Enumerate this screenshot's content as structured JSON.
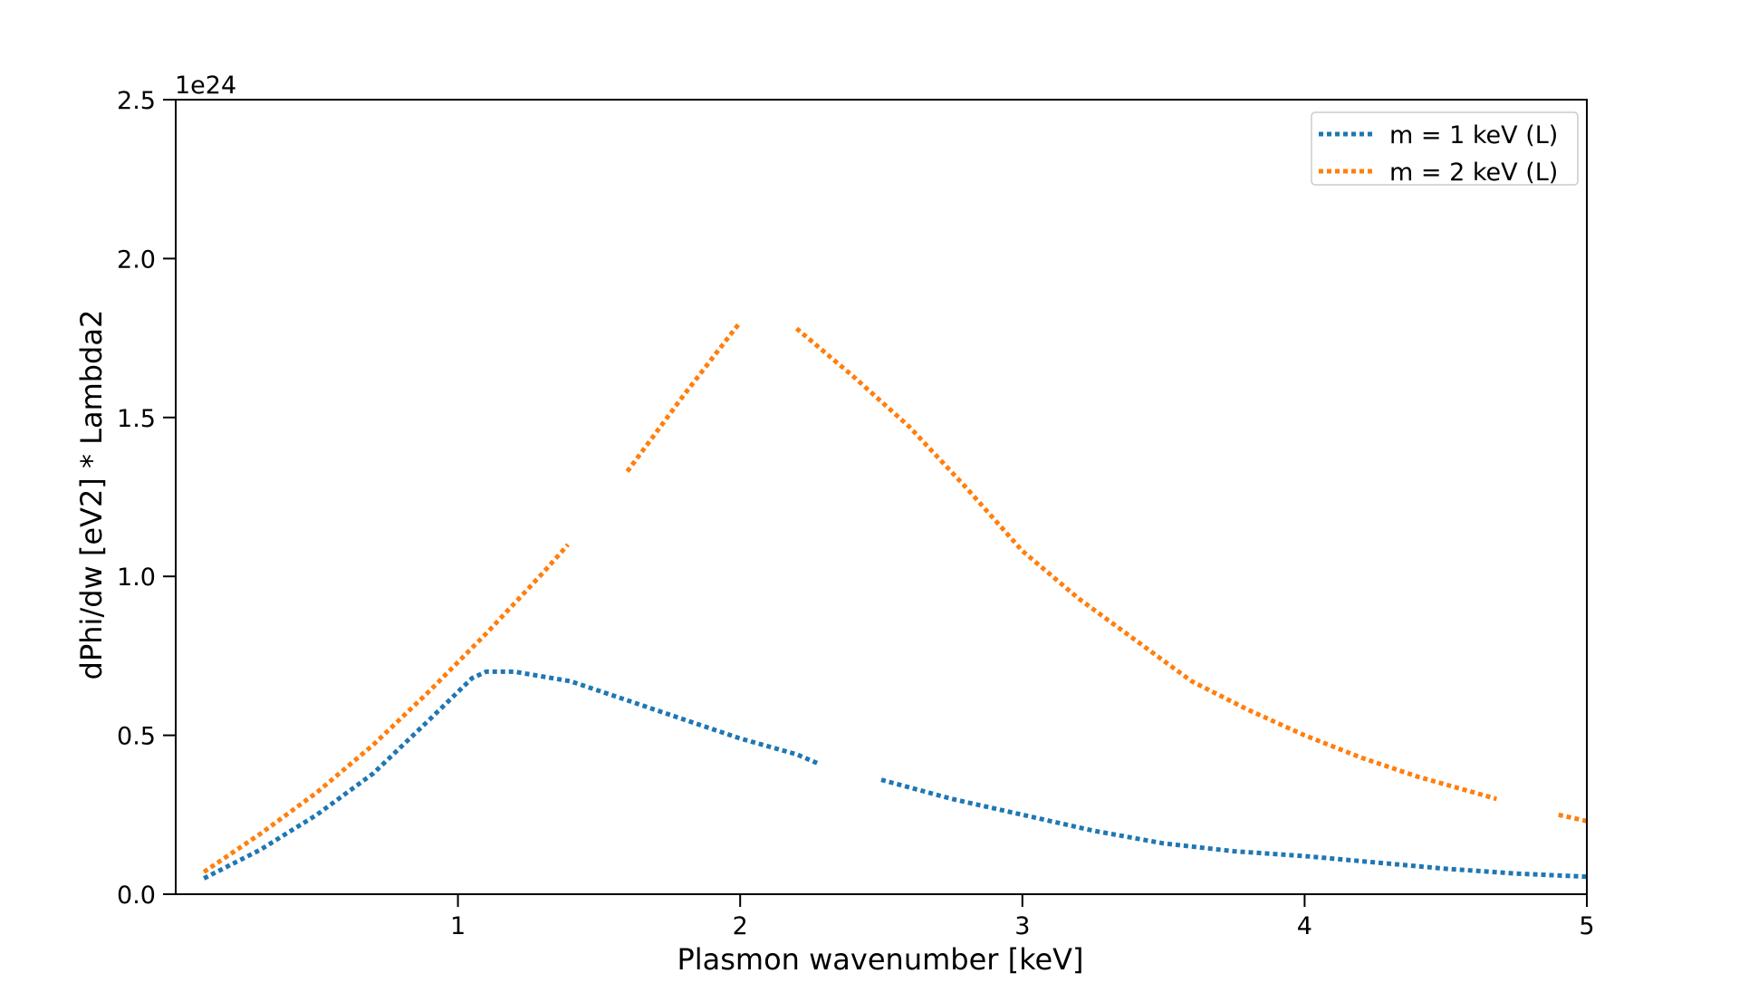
{
  "chart_data": {
    "type": "line",
    "title": "",
    "xlabel": "Plasmon wavenumber [keV]",
    "ylabel": "dPhi/dw [eV2] * Lambda2",
    "y_offset_text": "1e24",
    "xlim": [
      0.0,
      5.0
    ],
    "ylim": [
      0.0,
      2.5
    ],
    "x_ticks": [
      "1",
      "2",
      "3",
      "4",
      "5"
    ],
    "x_tick_values": [
      1,
      2,
      3,
      4,
      5
    ],
    "y_ticks": [
      "0.0",
      "0.5",
      "1.0",
      "1.5",
      "2.0",
      "2.5"
    ],
    "y_tick_values": [
      0.0,
      0.5,
      1.0,
      1.5,
      2.0,
      2.5
    ],
    "legend_position": "top-right",
    "series": [
      {
        "name": "m = 1 keV (L)",
        "color": "#1f77b4",
        "linestyle": "dotted",
        "segments": [
          [
            [
              0.1,
              0.05
            ],
            [
              0.3,
              0.14
            ],
            [
              0.5,
              0.25
            ],
            [
              0.7,
              0.38
            ],
            [
              0.9,
              0.55
            ],
            [
              1.05,
              0.68
            ],
            [
              1.1,
              0.7
            ],
            [
              1.2,
              0.7
            ],
            [
              1.4,
              0.67
            ],
            [
              1.6,
              0.61
            ],
            [
              1.8,
              0.55
            ],
            [
              2.0,
              0.49
            ],
            [
              2.2,
              0.44
            ],
            [
              2.28,
              0.41
            ]
          ],
          [
            [
              2.5,
              0.36
            ],
            [
              2.75,
              0.3
            ],
            [
              3.0,
              0.25
            ],
            [
              3.25,
              0.2
            ],
            [
              3.5,
              0.16
            ],
            [
              3.75,
              0.135
            ],
            [
              4.0,
              0.12
            ],
            [
              4.25,
              0.1
            ],
            [
              4.5,
              0.08
            ],
            [
              4.75,
              0.065
            ],
            [
              5.0,
              0.055
            ]
          ]
        ]
      },
      {
        "name": "m = 2 keV (L)",
        "color": "#ff7f0e",
        "linestyle": "dotted",
        "segments": [
          [
            [
              0.1,
              0.07
            ],
            [
              0.3,
              0.19
            ],
            [
              0.5,
              0.32
            ],
            [
              0.7,
              0.47
            ],
            [
              0.9,
              0.64
            ],
            [
              1.1,
              0.82
            ],
            [
              1.3,
              1.01
            ],
            [
              1.39,
              1.1
            ]
          ],
          [
            [
              1.6,
              1.33
            ],
            [
              1.8,
              1.57
            ],
            [
              2.0,
              1.8
            ]
          ],
          [
            [
              2.2,
              1.78
            ],
            [
              2.4,
              1.63
            ],
            [
              2.6,
              1.47
            ],
            [
              2.8,
              1.28
            ],
            [
              3.0,
              1.08
            ],
            [
              3.2,
              0.93
            ],
            [
              3.4,
              0.8
            ],
            [
              3.6,
              0.67
            ],
            [
              3.8,
              0.58
            ],
            [
              4.0,
              0.5
            ],
            [
              4.2,
              0.43
            ],
            [
              4.4,
              0.37
            ],
            [
              4.6,
              0.32
            ],
            [
              4.68,
              0.3
            ]
          ],
          [
            [
              4.9,
              0.25
            ],
            [
              5.0,
              0.23
            ]
          ]
        ]
      }
    ]
  }
}
